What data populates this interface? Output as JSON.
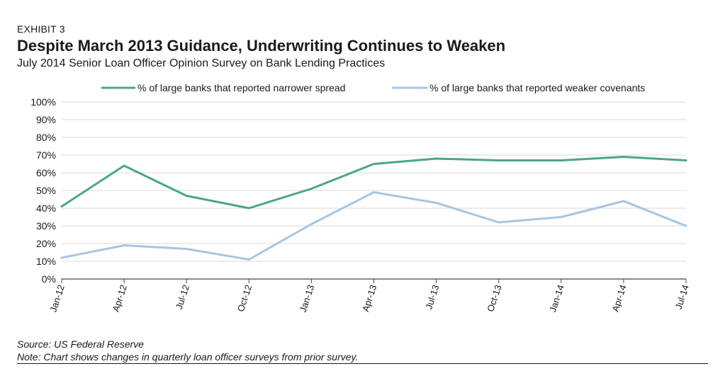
{
  "header": {
    "exhibit": "EXHIBIT 3",
    "title": "Despite March 2013 Guidance, Underwriting Continues to Weaken",
    "subtitle": "July 2014 Senior Loan Officer Opinion Survey on Bank Lending Practices"
  },
  "footer": {
    "source": "Source: US Federal Reserve",
    "note": "Note: Chart shows changes in quarterly loan officer surveys from prior survey."
  },
  "chart_data": {
    "type": "line",
    "categories": [
      "Jan-12",
      "Apr-12",
      "Jul-12",
      "Oct-12",
      "Jan-13",
      "Apr-13",
      "Jul-13",
      "Oct-13",
      "Jan-14",
      "Apr-14",
      "Jul-14"
    ],
    "series": [
      {
        "name": "% of large banks that reported narrower spread",
        "color": "#4aa784",
        "values": [
          41,
          64,
          47,
          40,
          51,
          65,
          68,
          67,
          67,
          69,
          67
        ]
      },
      {
        "name": "% of large banks that reported weaker covenants",
        "color": "#a6c6e2",
        "values": [
          12,
          19,
          17,
          11,
          31,
          49,
          43,
          32,
          35,
          44,
          30
        ]
      }
    ],
    "ylim": [
      0,
      100
    ],
    "yticks": [
      "0%",
      "10%",
      "20%",
      "30%",
      "40%",
      "50%",
      "60%",
      "70%",
      "80%",
      "90%",
      "100%"
    ],
    "grid": true,
    "legend": "top"
  }
}
